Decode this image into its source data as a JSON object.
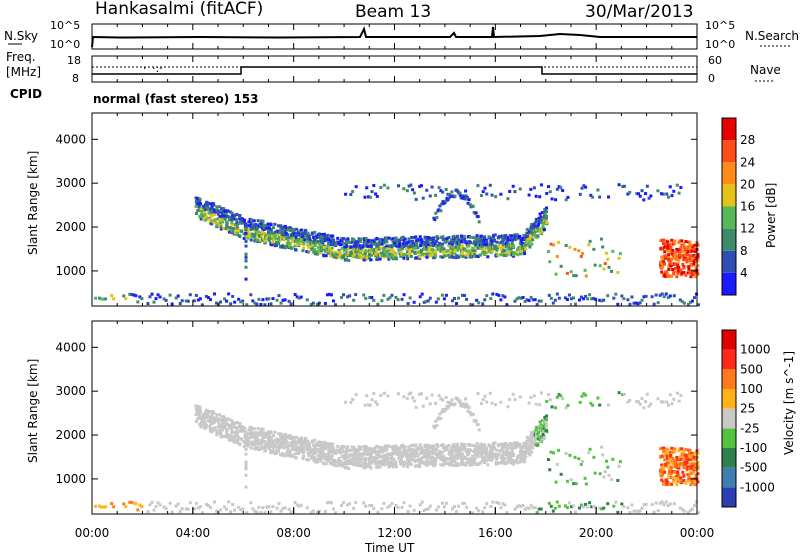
{
  "header": {
    "station": "Hankasalmi (fitACF)",
    "beam": "Beam 13",
    "date": "30/Mar/2013"
  },
  "panels": {
    "noise": {
      "left_label": "N.Sky",
      "left_ticks": [
        "10^5",
        "10^0"
      ],
      "right_label": "N.Search",
      "right_ticks": [
        "10^5",
        "10^0"
      ]
    },
    "freq": {
      "left_label_1": "Freq.",
      "left_label_2": "[MHz]",
      "left_ticks": [
        "18",
        "8"
      ],
      "right_label": "Nave",
      "right_ticks": [
        "60",
        "0"
      ]
    },
    "cpid": {
      "label": "CPID",
      "text": "normal (fast stereo) 153"
    }
  },
  "chart_data": [
    {
      "type": "heatmap",
      "title": "",
      "quantity": "Power",
      "ylabel": "Slant Range [km]",
      "y_ticks": [
        1000,
        2000,
        3000,
        4000
      ],
      "ylim": [
        200,
        4600
      ],
      "xlim_hours": [
        0,
        24
      ],
      "colorbar": {
        "label": "Power [dB]",
        "ticks": [
          "4",
          "8",
          "12",
          "16",
          "20",
          "24",
          "28"
        ],
        "colors": [
          "#1a1aff",
          "#2f4fb5",
          "#3f8a6a",
          "#57b85a",
          "#e5c21a",
          "#ff8c1a",
          "#ff4d1a",
          "#e60000"
        ]
      },
      "features": [
        {
          "desc": "near range band",
          "x_hours": [
            0,
            24
          ],
          "y_km": [
            250,
            500
          ]
        },
        {
          "desc": "main arc",
          "x_hours": [
            3.5,
            18
          ],
          "y_km": [
            1200,
            2500
          ]
        },
        {
          "desc": "strong patch",
          "x_hours": [
            22.5,
            24
          ],
          "y_km": [
            900,
            1700
          ]
        }
      ]
    },
    {
      "type": "heatmap",
      "title": "",
      "quantity": "Velocity",
      "ylabel": "Slant Range [km]",
      "y_ticks": [
        1000,
        2000,
        3000,
        4000
      ],
      "ylim": [
        200,
        4600
      ],
      "xlim_hours": [
        0,
        24
      ],
      "colorbar": {
        "label": "Velocity [m s^-1]",
        "ticks": [
          "1000",
          "500",
          "100",
          "25",
          "-25",
          "-100",
          "-500",
          "-1000"
        ],
        "colors": [
          "#2b3fb0",
          "#3f7fb0",
          "#2f7f4f",
          "#55c23f",
          "#c8c8c8",
          "#ffb21a",
          "#ff7a1a",
          "#ff2a1a",
          "#e00000"
        ]
      },
      "features": [
        {
          "desc": "ground scatter arc",
          "x_hours": [
            3.5,
            18
          ],
          "y_km": [
            1200,
            2500
          ]
        },
        {
          "desc": "positive velocity patch",
          "x_hours": [
            22.5,
            24
          ],
          "y_km": [
            900,
            1700
          ]
        }
      ]
    }
  ],
  "x_axis": {
    "label": "Time UT",
    "ticks": [
      "00:00",
      "04:00",
      "08:00",
      "12:00",
      "16:00",
      "20:00",
      "00:00"
    ]
  }
}
